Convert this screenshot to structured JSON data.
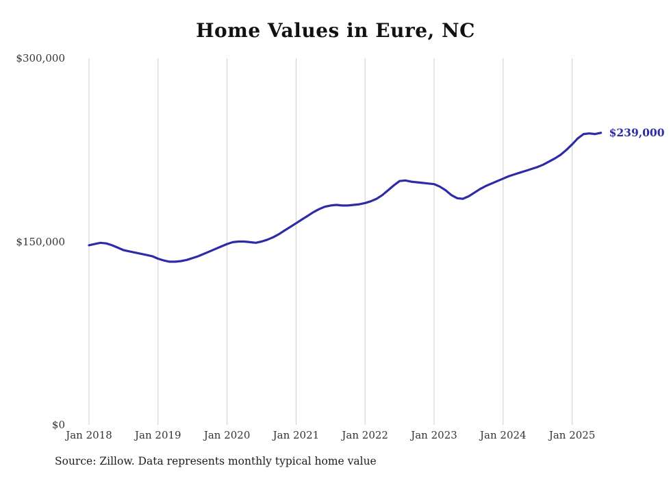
{
  "chart_data": {
    "type": "line",
    "title": "Home Values in Eure, NC",
    "series_name": "Monthly typical home value",
    "xlabel": "",
    "ylabel": "",
    "ylim": [
      0,
      300000
    ],
    "grid": "vertical-only",
    "legend": "none",
    "line_color": "#2e2ba6",
    "grid_color": "#cccccc",
    "end_label": "$239,000",
    "source_note": "Source: Zillow. Data represents monthly typical home value",
    "y_ticks": [
      {
        "value": 0,
        "label": "$0"
      },
      {
        "value": 150000,
        "label": "$150,000"
      },
      {
        "value": 300000,
        "label": "$300,000"
      }
    ],
    "x_ticks": [
      {
        "label": "Jan 2018",
        "month_index": 0
      },
      {
        "label": "Jan 2019",
        "month_index": 12
      },
      {
        "label": "Jan 2020",
        "month_index": 24
      },
      {
        "label": "Jan 2021",
        "month_index": 36
      },
      {
        "label": "Jan 2022",
        "month_index": 48
      },
      {
        "label": "Jan 2023",
        "month_index": 60
      },
      {
        "label": "Jan 2024",
        "month_index": 72
      },
      {
        "label": "Jan 2025",
        "month_index": 84
      }
    ],
    "x": [
      "2018-01",
      "2018-02",
      "2018-03",
      "2018-04",
      "2018-05",
      "2018-06",
      "2018-07",
      "2018-08",
      "2018-09",
      "2018-10",
      "2018-11",
      "2018-12",
      "2019-01",
      "2019-02",
      "2019-03",
      "2019-04",
      "2019-05",
      "2019-06",
      "2019-07",
      "2019-08",
      "2019-09",
      "2019-10",
      "2019-11",
      "2019-12",
      "2020-01",
      "2020-02",
      "2020-03",
      "2020-04",
      "2020-05",
      "2020-06",
      "2020-07",
      "2020-08",
      "2020-09",
      "2020-10",
      "2020-11",
      "2020-12",
      "2021-01",
      "2021-02",
      "2021-03",
      "2021-04",
      "2021-05",
      "2021-06",
      "2021-07",
      "2021-08",
      "2021-09",
      "2021-10",
      "2021-11",
      "2021-12",
      "2022-01",
      "2022-02",
      "2022-03",
      "2022-04",
      "2022-05",
      "2022-06",
      "2022-07",
      "2022-08",
      "2022-09",
      "2022-10",
      "2022-11",
      "2022-12",
      "2023-01",
      "2023-02",
      "2023-03",
      "2023-04",
      "2023-05",
      "2023-06",
      "2023-07",
      "2023-08",
      "2023-09",
      "2023-10",
      "2023-11",
      "2023-12",
      "2024-01",
      "2024-02",
      "2024-03",
      "2024-04",
      "2024-05",
      "2024-06",
      "2024-07",
      "2024-08",
      "2024-09",
      "2024-10",
      "2024-11",
      "2024-12",
      "2025-01",
      "2025-02",
      "2025-03",
      "2025-04",
      "2025-05",
      "2025-06"
    ],
    "values": [
      147000,
      148000,
      149000,
      148500,
      147000,
      145000,
      143000,
      142000,
      141000,
      140000,
      139000,
      138000,
      136000,
      134500,
      133500,
      133500,
      134000,
      135000,
      136500,
      138000,
      140000,
      142000,
      144000,
      146000,
      148000,
      149500,
      150000,
      150000,
      149500,
      149000,
      150000,
      151500,
      153500,
      156000,
      159000,
      162000,
      165000,
      168000,
      171000,
      174000,
      176500,
      178500,
      179500,
      180000,
      179500,
      179500,
      180000,
      180500,
      181500,
      183000,
      185000,
      188000,
      192000,
      196000,
      199500,
      200000,
      199000,
      198500,
      198000,
      197500,
      197000,
      195000,
      192000,
      188000,
      185500,
      185000,
      187000,
      190000,
      193000,
      195500,
      197500,
      199500,
      201500,
      203500,
      205000,
      206500,
      208000,
      209500,
      211000,
      213000,
      215500,
      218000,
      221000,
      225000,
      229500,
      234500,
      238000,
      238500,
      238000,
      239000
    ]
  }
}
